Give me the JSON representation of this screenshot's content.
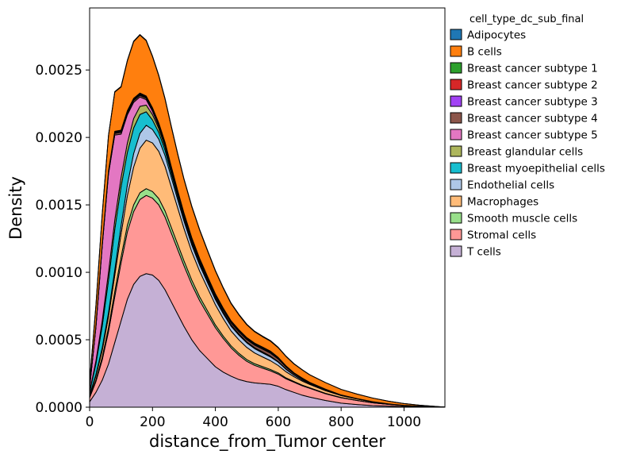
{
  "chart_data": {
    "type": "area",
    "stacked": true,
    "xlabel": "distance_from_Tumor center",
    "ylabel": "Density",
    "xlim": [
      0,
      1130
    ],
    "ylim": [
      0,
      0.00296
    ],
    "xticks": [
      0,
      200,
      400,
      600,
      800,
      1000
    ],
    "yticks": [
      0,
      0.0005,
      0.001,
      0.0015,
      0.002,
      0.0025
    ],
    "xtick_labels": [
      "0",
      "200",
      "400",
      "600",
      "800",
      "1000"
    ],
    "ytick_labels": [
      "0.0000",
      "0.0005",
      "0.0010",
      "0.0015",
      "0.0020",
      "0.0025"
    ],
    "grid": false,
    "legend": {
      "title": "cell_type_dc_sub_final",
      "placement": "outside-right",
      "entries": [
        {
          "label": "Adipocytes",
          "color": "#1f77b4"
        },
        {
          "label": "B cells",
          "color": "#ff7f0e"
        },
        {
          "label": "Breast cancer subtype 1",
          "color": "#2ca02c"
        },
        {
          "label": "Breast cancer subtype 2",
          "color": "#d62728"
        },
        {
          "label": "Breast cancer subtype 3",
          "color": "#a142f4"
        },
        {
          "label": "Breast cancer subtype 4",
          "color": "#8c564b"
        },
        {
          "label": "Breast cancer subtype 5",
          "color": "#e377c2"
        },
        {
          "label": "Breast glandular cells",
          "color": "#adb65c"
        },
        {
          "label": "Breast myoepithelial cells",
          "color": "#17becf"
        },
        {
          "label": "Endothelial cells",
          "color": "#aec7e8"
        },
        {
          "label": "Macrophages",
          "color": "#ffbb78"
        },
        {
          "label": "Smooth muscle cells",
          "color": "#98df8a"
        },
        {
          "label": "Stromal cells",
          "color": "#ff9896"
        },
        {
          "label": "T cells",
          "color": "#c5b0d5"
        }
      ]
    },
    "x": [
      0,
      20,
      40,
      60,
      80,
      100,
      120,
      140,
      160,
      180,
      200,
      220,
      240,
      260,
      280,
      300,
      325,
      350,
      375,
      400,
      425,
      450,
      475,
      500,
      525,
      550,
      575,
      600,
      625,
      650,
      675,
      700,
      750,
      800,
      850,
      900,
      950,
      1000,
      1050,
      1100,
      1130
    ],
    "series": [
      {
        "color": "#c5b0d5",
        "values": [
          4e-05,
          0.00011,
          0.0002,
          0.00032,
          0.00048,
          0.00064,
          0.0008,
          0.00091,
          0.00097,
          0.00099,
          0.00098,
          0.00094,
          0.00087,
          0.00078,
          0.00069,
          0.0006,
          0.0005,
          0.00042,
          0.00036,
          0.0003,
          0.00026,
          0.00023,
          0.000205,
          0.00019,
          0.00018,
          0.000175,
          0.00017,
          0.000155,
          0.00013,
          0.00011,
          9e-05,
          7.5e-05,
          5e-05,
          3e-05,
          2e-05,
          1.2e-05,
          8e-06,
          5e-06,
          3e-06,
          1e-06,
          0
        ]
      },
      {
        "color": "#ff9896",
        "values": [
          3e-05,
          8e-05,
          0.00015,
          0.00024,
          0.00034,
          0.00043,
          0.0005,
          0.00054,
          0.00057,
          0.00058,
          0.00057,
          0.00056,
          0.00054,
          0.00051,
          0.00048,
          0.00045,
          0.00041,
          0.00037,
          0.00033,
          0.00029,
          0.00025,
          0.00021,
          0.00018,
          0.00015,
          0.00013,
          0.000115,
          0.0001,
          9e-05,
          8e-05,
          7.5e-05,
          7e-05,
          6.5e-05,
          5e-05,
          4e-05,
          3e-05,
          2e-05,
          1.3e-05,
          7e-06,
          4e-06,
          2e-06,
          0
        ]
      },
      {
        "color": "#98df8a",
        "values": [
          5e-06,
          1.2e-05,
          2e-05,
          3e-05,
          3.8e-05,
          4.4e-05,
          4.8e-05,
          5e-05,
          5e-05,
          5e-05,
          4.9e-05,
          4.7e-05,
          4.5e-05,
          4.2e-05,
          3.9e-05,
          3.6e-05,
          3.2e-05,
          2.8e-05,
          2.4e-05,
          2e-05,
          1.7e-05,
          1.5e-05,
          1.4e-05,
          1.3e-05,
          1.2e-05,
          1.1e-05,
          1e-05,
          9e-06,
          7e-06,
          6e-06,
          5e-06,
          4e-06,
          3e-06,
          2e-06,
          1e-06,
          1e-06,
          0,
          0,
          0,
          0,
          0
        ]
      },
      {
        "color": "#ffbb78",
        "values": [
          1e-05,
          3e-05,
          5e-05,
          8e-05,
          0.00012,
          0.00017,
          0.00022,
          0.00028,
          0.00033,
          0.00036,
          0.00036,
          0.00035,
          0.00033,
          0.0003,
          0.00027,
          0.00024,
          0.00021,
          0.00019,
          0.00017,
          0.00015,
          0.00013,
          0.00011,
          0.0001,
          9e-05,
          8e-05,
          7.2e-05,
          6.5e-05,
          5.5e-05,
          4.5e-05,
          3.5e-05,
          3e-05,
          2.5e-05,
          2e-05,
          1.4e-05,
          1e-05,
          7e-06,
          4e-06,
          2e-06,
          1e-06,
          0,
          0
        ]
      },
      {
        "color": "#aec7e8",
        "values": [
          5e-06,
          1e-05,
          2e-05,
          3e-05,
          4e-05,
          6e-05,
          8e-05,
          0.0001,
          0.00011,
          0.00011,
          0.0001,
          9e-05,
          8e-05,
          7e-05,
          6e-05,
          5.5e-05,
          5e-05,
          4.5e-05,
          4e-05,
          3.8e-05,
          3.6e-05,
          3.5e-05,
          3.5e-05,
          3.4e-05,
          3.2e-05,
          3e-05,
          2.8e-05,
          2.5e-05,
          1.8e-05,
          1.2e-05,
          8e-06,
          6e-06,
          4e-06,
          2e-06,
          1e-06,
          0,
          0,
          0,
          0,
          0,
          0
        ]
      },
      {
        "color": "#17becf",
        "values": [
          2e-05,
          8e-05,
          0.00016,
          0.00024,
          0.0003,
          0.00029,
          0.00024,
          0.00019,
          0.00014,
          0.0001,
          7e-05,
          5e-05,
          4e-05,
          3e-05,
          2.5e-05,
          2e-05,
          1.7e-05,
          1.4e-05,
          1.1e-05,
          9e-06,
          8e-06,
          7e-06,
          6e-06,
          5e-06,
          5e-06,
          5e-06,
          4e-06,
          3e-06,
          2e-06,
          1e-06,
          1e-06,
          0,
          0,
          0,
          0,
          0,
          0,
          0,
          0,
          0,
          0
        ]
      },
      {
        "color": "#adb65c",
        "values": [
          5e-06,
          2e-05,
          4e-05,
          6e-05,
          7e-05,
          7e-05,
          7e-05,
          7e-05,
          6e-05,
          5e-05,
          4e-05,
          3e-05,
          2.5e-05,
          2e-05,
          1.5e-05,
          1.2e-05,
          1e-05,
          8e-06,
          6e-06,
          5e-06,
          4e-06,
          3e-06,
          3e-06,
          2e-06,
          2e-06,
          2e-06,
          2e-06,
          1e-06,
          1e-06,
          0,
          0,
          0,
          0,
          0,
          0,
          0,
          0,
          0,
          0,
          0,
          0
        ]
      },
      {
        "color": "#e377c2",
        "values": [
          3e-05,
          0.00025,
          0.00055,
          0.00073,
          0.00063,
          0.00032,
          0.00021,
          0.00012,
          7e-05,
          4e-05,
          2.5e-05,
          1.5e-05,
          1e-05,
          7e-06,
          5e-06,
          4e-06,
          3e-06,
          2e-06,
          2e-06,
          1e-06,
          1e-06,
          0,
          0,
          0,
          0,
          0,
          0,
          0,
          0,
          0,
          0,
          0,
          0,
          0,
          0,
          0,
          0,
          0,
          0,
          0,
          0
        ]
      },
      {
        "color": "#8c564b",
        "values": [
          2e-06,
          5e-06,
          8e-06,
          1e-05,
          1.2e-05,
          1.3e-05,
          1.3e-05,
          1.3e-05,
          1.2e-05,
          1.1e-05,
          1e-05,
          1e-05,
          9e-06,
          9e-06,
          9e-06,
          9e-06,
          1e-05,
          1.1e-05,
          1.2e-05,
          1.3e-05,
          1.4e-05,
          1.5e-05,
          1.6e-05,
          1.7e-05,
          1.9e-05,
          2.1e-05,
          2.2e-05,
          1.9e-05,
          1.4e-05,
          1e-05,
          8e-06,
          6e-06,
          4e-06,
          3e-06,
          2e-06,
          1e-06,
          0,
          0,
          0,
          0,
          0
        ]
      },
      {
        "color": "#a142f4",
        "values": [
          1e-06,
          2e-06,
          4e-06,
          5e-06,
          6e-06,
          7e-06,
          7e-06,
          7e-06,
          7e-06,
          6e-06,
          6e-06,
          5e-06,
          5e-06,
          5e-06,
          5e-06,
          5e-06,
          5e-06,
          5e-06,
          5e-06,
          5e-06,
          5e-06,
          5e-06,
          5e-06,
          5e-06,
          5e-06,
          5e-06,
          5e-06,
          4e-06,
          3e-06,
          2e-06,
          2e-06,
          1e-06,
          1e-06,
          0,
          0,
          0,
          0,
          0,
          0,
          0,
          0
        ]
      },
      {
        "color": "#d62728",
        "values": [
          1e-06,
          2e-06,
          3e-06,
          4e-06,
          5e-06,
          5e-06,
          5e-06,
          5e-06,
          5e-06,
          5e-06,
          5e-06,
          5e-06,
          5e-06,
          5e-06,
          5e-06,
          5e-06,
          5e-06,
          5e-06,
          5e-06,
          5e-06,
          5e-06,
          5e-06,
          5e-06,
          5e-06,
          5e-06,
          5e-06,
          5e-06,
          4e-06,
          3e-06,
          2e-06,
          2e-06,
          1e-06,
          1e-06,
          0,
          0,
          0,
          0,
          0,
          0,
          0,
          0
        ]
      },
      {
        "color": "#2ca02c",
        "values": [
          1e-06,
          2e-06,
          3e-06,
          4e-06,
          5e-06,
          5e-06,
          5e-06,
          5e-06,
          5e-06,
          5e-06,
          5e-06,
          5e-06,
          5e-06,
          5e-06,
          5e-06,
          5e-06,
          5e-06,
          5e-06,
          5e-06,
          5e-06,
          5e-06,
          5e-06,
          5e-06,
          5e-06,
          5e-06,
          5e-06,
          5e-06,
          4e-06,
          3e-06,
          2e-06,
          2e-06,
          1e-06,
          1e-06,
          0,
          0,
          0,
          0,
          0,
          0,
          0,
          0
        ]
      },
      {
        "color": "#ff7f0e",
        "values": [
          4e-05,
          0.00015,
          0.00022,
          0.00026,
          0.00029,
          0.00032,
          0.00037,
          0.00042,
          0.00043,
          0.00041,
          0.00038,
          0.00035,
          0.00032,
          0.000295,
          0.00027,
          0.00025,
          0.00023,
          0.00021,
          0.00019,
          0.00017,
          0.000148,
          0.000128,
          0.00011,
          9.5e-05,
          8.4e-05,
          7.7e-05,
          7.4e-05,
          7.2e-05,
          7e-05,
          6.6e-05,
          6.1e-05,
          5.6e-05,
          4.9e-05,
          4.1e-05,
          3.4e-05,
          2.7e-05,
          2e-05,
          1.3e-05,
          7e-06,
          3e-06,
          1e-06
        ]
      },
      {
        "color": "#1f77b4",
        "values": [
          1e-06,
          2e-06,
          3e-06,
          3e-06,
          4e-06,
          4e-06,
          4e-06,
          4e-06,
          4e-06,
          4e-06,
          4e-06,
          4e-06,
          4e-06,
          4e-06,
          4e-06,
          4e-06,
          4e-06,
          4e-06,
          4e-06,
          4e-06,
          4e-06,
          4e-06,
          4e-06,
          4e-06,
          4e-06,
          4e-06,
          4e-06,
          3e-06,
          2e-06,
          2e-06,
          1e-06,
          1e-06,
          0,
          0,
          0,
          0,
          0,
          0,
          0,
          0,
          0
        ]
      }
    ]
  }
}
